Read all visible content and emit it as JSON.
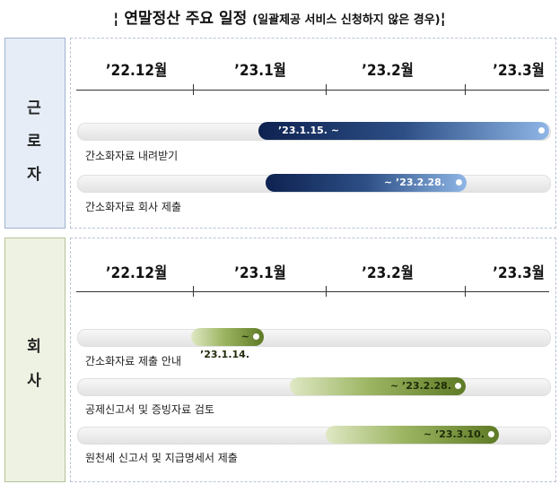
{
  "title": "연말정산 주요 일정",
  "subtitle": "(일괄제공 서비스 신청하지 않은 경우)",
  "sections": [
    {
      "label": [
        "근",
        "로",
        "자"
      ],
      "months": [
        "’22.12월",
        "’23.1월",
        "’23.2월",
        "’23.3월"
      ],
      "tasks": [
        {
          "bar_label": "’23.1.15. ~",
          "name": "간소화자료 내려받기"
        },
        {
          "bar_label": "~ ’23.2.28.",
          "name": "간소화자료 회사 제출"
        }
      ]
    },
    {
      "label": [
        "회",
        "사"
      ],
      "months": [
        "’22.12월",
        "’23.1월",
        "’23.2월",
        "’23.3월"
      ],
      "tasks": [
        {
          "bar_label": "~ ’23.1.14.",
          "name": "간소화자료 제출 안내"
        },
        {
          "bar_label": "~ ’23.2.28.",
          "name": "공제신고서 및 증빙자료 검토"
        },
        {
          "bar_label": "~ ’23.3.10.",
          "name": "원천세 신고서 및 지급명세서 제출"
        }
      ]
    }
  ]
}
